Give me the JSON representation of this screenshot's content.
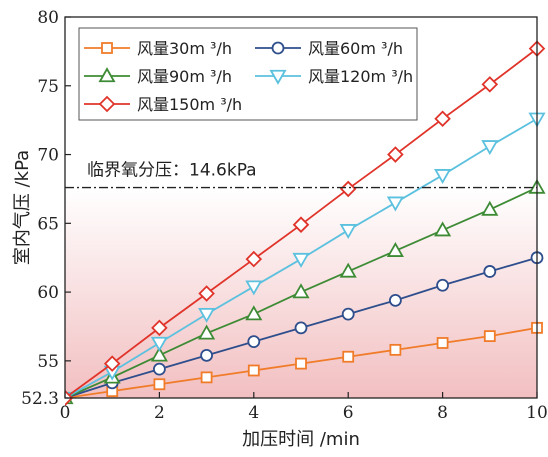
{
  "chart_data": {
    "type": "line",
    "xlabel": "加压时间 /min",
    "ylabel": "室内气压 /kPa",
    "xlim": [
      0,
      10
    ],
    "ylim": [
      52.3,
      80
    ],
    "x_ticks": [
      0,
      2,
      4,
      6,
      8,
      10
    ],
    "y_ticks": [
      52.3,
      55,
      60,
      65,
      70,
      75,
      80
    ],
    "x": [
      0,
      1,
      2,
      3,
      4,
      5,
      6,
      7,
      8,
      9,
      10
    ],
    "series": [
      {
        "name": "风量30m ³/h",
        "marker": "square",
        "color": "#F07C2A",
        "values": [
          52.3,
          52.8,
          53.3,
          53.8,
          54.3,
          54.8,
          55.3,
          55.8,
          56.3,
          56.8,
          57.4
        ]
      },
      {
        "name": "风量60m ³/h",
        "marker": "circle",
        "color": "#2E4E8C",
        "values": [
          52.3,
          53.4,
          54.4,
          55.4,
          56.4,
          57.4,
          58.4,
          59.4,
          60.5,
          61.5,
          62.5
        ]
      },
      {
        "name": "风量90m ³/h",
        "marker": "triangle-up",
        "color": "#3E8B35",
        "values": [
          52.3,
          53.8,
          55.4,
          57.0,
          58.4,
          60.0,
          61.5,
          63.0,
          64.5,
          66.0,
          67.6
        ]
      },
      {
        "name": "风量120m ³/h",
        "marker": "triangle-down",
        "color": "#5BC1DF",
        "values": [
          52.3,
          54.2,
          56.3,
          58.4,
          60.4,
          62.4,
          64.5,
          66.5,
          68.5,
          70.6,
          72.6
        ]
      },
      {
        "name": "风量150m ³/h",
        "marker": "diamond",
        "color": "#E0342A",
        "values": [
          52.3,
          54.8,
          57.4,
          59.9,
          62.4,
          64.9,
          67.5,
          70.0,
          72.6,
          75.1,
          77.7
        ]
      }
    ],
    "reference_line": {
      "y": 67.6,
      "label": "临界氧分压：14.6kPa",
      "style": "dash-dot",
      "color": "#222222"
    },
    "shaded_region": {
      "from": 52.3,
      "to": 67.6,
      "color_top": "#ffffff",
      "color_bottom": "#f2bfc1"
    },
    "legend": {
      "placement": "top-left",
      "columns": 2
    },
    "grid": false
  }
}
